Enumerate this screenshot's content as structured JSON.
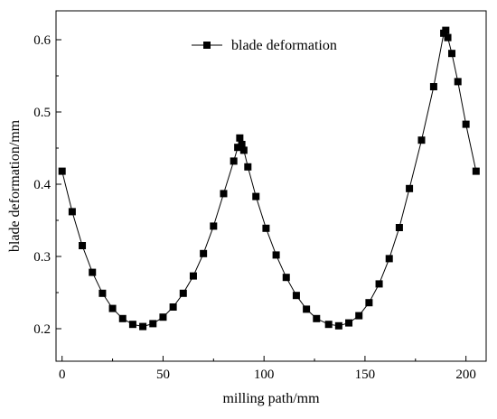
{
  "chart_data": {
    "type": "line",
    "xlabel": "milling path/mm",
    "ylabel": "blade deformation/mm",
    "xlim": [
      -3,
      210
    ],
    "ylim": [
      0.155,
      0.64
    ],
    "x_ticks": [
      0,
      50,
      100,
      150,
      200
    ],
    "y_ticks": [
      0.2,
      0.3,
      0.4,
      0.5,
      0.6
    ],
    "x_tick_labels": [
      "0",
      "50",
      "100",
      "150",
      "200"
    ],
    "y_tick_labels": [
      "0.2",
      "0.3",
      "0.4",
      "0.5",
      "0.6"
    ],
    "legend_position": "top-center",
    "grid": false,
    "series": [
      {
        "name": "blade deformation",
        "color": "#000000",
        "marker": "square",
        "points": [
          [
            0,
            0.418
          ],
          [
            5,
            0.362
          ],
          [
            10,
            0.315
          ],
          [
            15,
            0.278
          ],
          [
            20,
            0.249
          ],
          [
            25,
            0.228
          ],
          [
            30,
            0.214
          ],
          [
            35,
            0.206
          ],
          [
            40,
            0.203
          ],
          [
            45,
            0.207
          ],
          [
            50,
            0.216
          ],
          [
            55,
            0.23
          ],
          [
            60,
            0.249
          ],
          [
            65,
            0.273
          ],
          [
            70,
            0.304
          ],
          [
            75,
            0.342
          ],
          [
            80,
            0.387
          ],
          [
            85,
            0.432
          ],
          [
            87,
            0.451
          ],
          [
            88,
            0.464
          ],
          [
            89,
            0.455
          ],
          [
            90,
            0.447
          ],
          [
            92,
            0.424
          ],
          [
            96,
            0.383
          ],
          [
            101,
            0.339
          ],
          [
            106,
            0.302
          ],
          [
            111,
            0.271
          ],
          [
            116,
            0.246
          ],
          [
            121,
            0.227
          ],
          [
            126,
            0.214
          ],
          [
            132,
            0.206
          ],
          [
            137,
            0.204
          ],
          [
            142,
            0.208
          ],
          [
            147,
            0.218
          ],
          [
            152,
            0.236
          ],
          [
            157,
            0.262
          ],
          [
            162,
            0.297
          ],
          [
            167,
            0.34
          ],
          [
            172,
            0.394
          ],
          [
            178,
            0.461
          ],
          [
            184,
            0.535
          ],
          [
            189,
            0.609
          ],
          [
            190,
            0.613
          ],
          [
            191,
            0.603
          ],
          [
            193,
            0.581
          ],
          [
            196,
            0.542
          ],
          [
            200,
            0.483
          ],
          [
            205,
            0.418
          ]
        ]
      }
    ]
  }
}
